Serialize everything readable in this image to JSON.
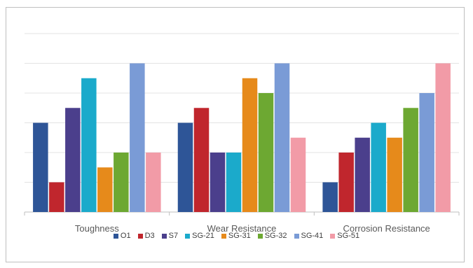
{
  "chart_data": {
    "type": "bar",
    "categories": [
      "Toughness",
      "Wear Resistance",
      "Corrosion Resistance"
    ],
    "series": [
      {
        "name": "O1",
        "color": "#2E5597",
        "values": [
          3,
          3,
          1
        ]
      },
      {
        "name": "D3",
        "color": "#C0262D",
        "values": [
          1,
          3.5,
          2
        ]
      },
      {
        "name": "S7",
        "color": "#4B3F8C",
        "values": [
          3.5,
          2,
          2.5
        ]
      },
      {
        "name": "SG-21",
        "color": "#1BAACB",
        "values": [
          4.5,
          2,
          3
        ]
      },
      {
        "name": "SG-31",
        "color": "#E68A1B",
        "values": [
          1.5,
          4.5,
          2.5
        ]
      },
      {
        "name": "SG-32",
        "color": "#6DA832",
        "values": [
          2,
          4,
          3.5
        ]
      },
      {
        "name": "SG-41",
        "color": "#7A9BD6",
        "values": [
          5,
          5,
          4
        ]
      },
      {
        "name": "SG-51",
        "color": "#F29BA7",
        "values": [
          2,
          2.5,
          5
        ]
      }
    ],
    "ylim": [
      0,
      6
    ],
    "grid": true,
    "legend_position": "bottom",
    "title": "",
    "xlabel": "",
    "ylabel": ""
  }
}
